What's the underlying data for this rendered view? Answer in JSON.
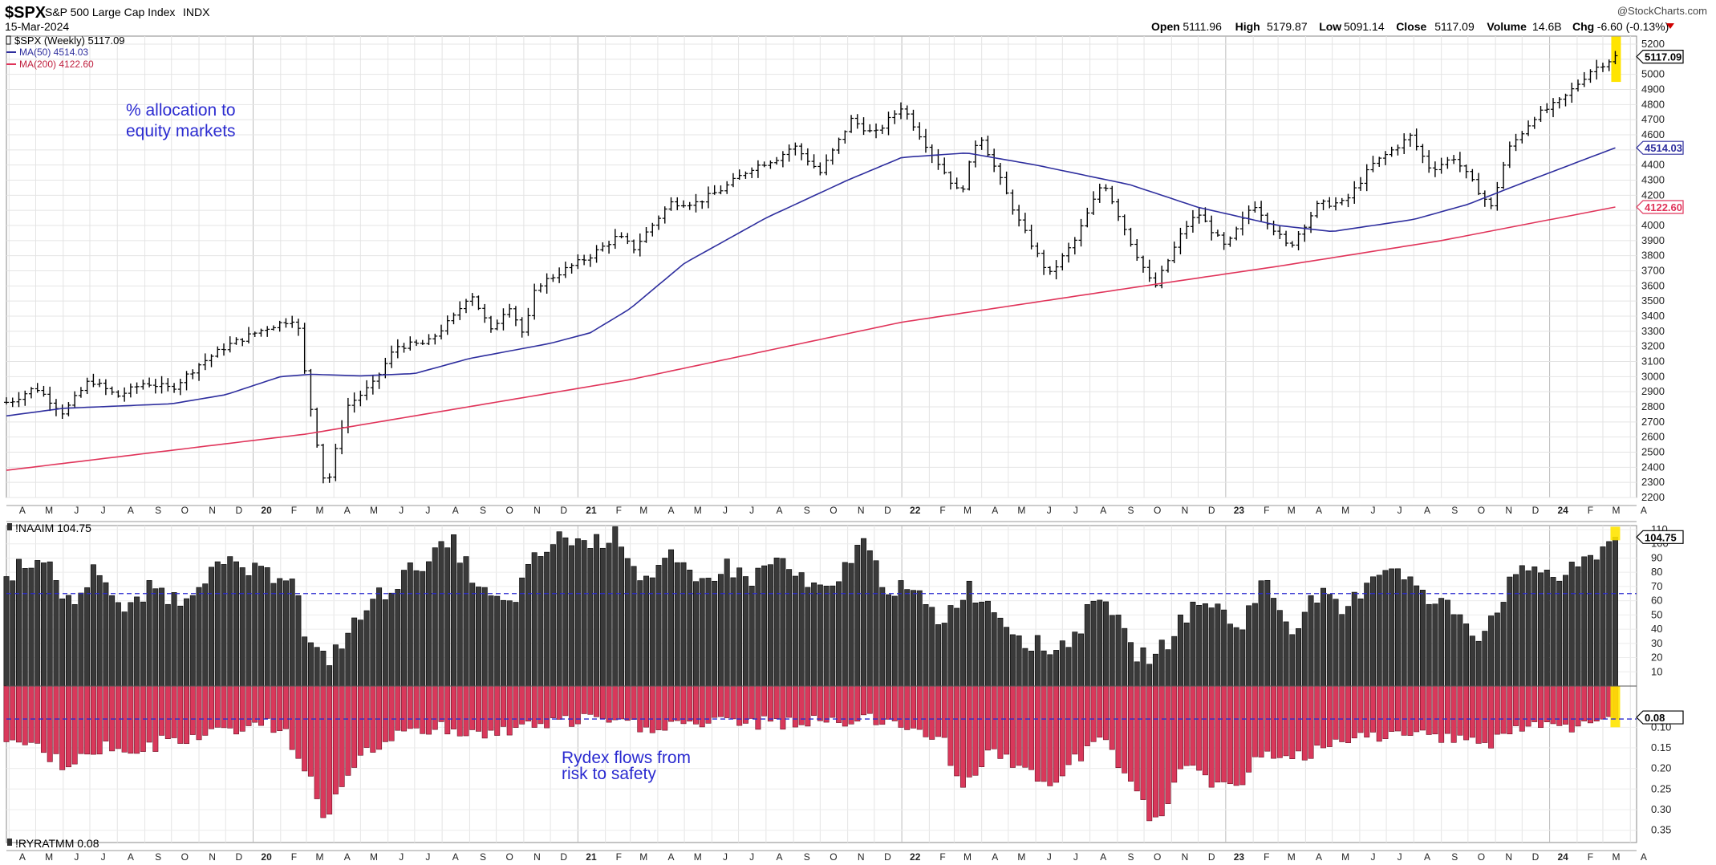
{
  "header": {
    "symbol": "$SPX",
    "name": "S&P 500 Large Cap Index",
    "exchange": "INDX",
    "date": "15-Mar-2024",
    "watermark": "@StockCharts.com",
    "ohlc": [
      {
        "label": "Open",
        "value": "5111.96"
      },
      {
        "label": "High",
        "value": "5179.87"
      },
      {
        "label": "Low",
        "value": "5091.14"
      },
      {
        "label": "Close",
        "value": "5117.09"
      },
      {
        "label": "Volume",
        "value": "14.6B"
      },
      {
        "label": "Chg",
        "value": "-6.60 (-0.13%)"
      }
    ]
  },
  "legend_price": {
    "main": "$SPX (Weekly) 5117.09",
    "ma50": "MA(50) 4514.03",
    "ma200": "MA(200) 4122.60"
  },
  "legend_naaim": "!NAAIM 104.75",
  "legend_ryrat": "!RYRATMM 0.08",
  "annotations": {
    "top": [
      "% allocation to",
      "equity markets"
    ],
    "bottom": [
      "Rydex flows from",
      "risk to safety"
    ]
  },
  "colors": {
    "price_bars": "#000000",
    "ma50": "#2e2e9e",
    "ma200": "#e0345a",
    "naaim_bars": "#3a3a3a",
    "rydex_bars": "#d9385b",
    "highlight": "#ffe400",
    "annotation": "#2b2bd0",
    "reference_lines": "#2b2bd0"
  },
  "chart_data": [
    {
      "type": "ohlc",
      "title": "$SPX (Weekly)",
      "x_range": [
        "2019-03",
        "2024-03"
      ],
      "ylim": [
        2200,
        5200
      ],
      "yticks": [
        2200,
        2300,
        2400,
        2500,
        2600,
        2700,
        2800,
        2900,
        3000,
        3100,
        3200,
        3300,
        3400,
        3500,
        3600,
        3700,
        3800,
        3900,
        4000,
        4100,
        4200,
        4300,
        4400,
        4500,
        4600,
        4700,
        4800,
        4900,
        5000,
        5100,
        5200
      ],
      "x_tick_labels": [
        "A",
        "M",
        "J",
        "J",
        "A",
        "S",
        "O",
        "N",
        "D",
        "20",
        "F",
        "M",
        "A",
        "M",
        "J",
        "J",
        "A",
        "S",
        "O",
        "N",
        "D",
        "21",
        "F",
        "M",
        "A",
        "M",
        "J",
        "J",
        "A",
        "S",
        "O",
        "N",
        "D",
        "22",
        "F",
        "M",
        "A",
        "M",
        "J",
        "J",
        "A",
        "S",
        "O",
        "N",
        "D",
        "23",
        "F",
        "M",
        "A",
        "M",
        "J",
        "J",
        "A",
        "S",
        "O",
        "N",
        "D",
        "24",
        "F",
        "M",
        "A"
      ],
      "value_labels": [
        "5117.09",
        "4514.03",
        "4122.60"
      ],
      "close_anchors": [
        [
          "2019-04-01",
          2830
        ],
        [
          "2019-05-01",
          2930
        ],
        [
          "2019-06-01",
          2760
        ],
        [
          "2019-07-01",
          2980
        ],
        [
          "2019-08-01",
          2870
        ],
        [
          "2019-09-01",
          2960
        ],
        [
          "2019-10-01",
          2920
        ],
        [
          "2019-11-01",
          3080
        ],
        [
          "2019-12-01",
          3200
        ],
        [
          "2020-01-15",
          3320
        ],
        [
          "2020-02-19",
          3390
        ],
        [
          "2020-03-01",
          2950
        ],
        [
          "2020-03-23",
          2240
        ],
        [
          "2020-04-15",
          2800
        ],
        [
          "2020-05-15",
          2950
        ],
        [
          "2020-06-10",
          3200
        ],
        [
          "2020-07-15",
          3220
        ],
        [
          "2020-08-15",
          3400
        ],
        [
          "2020-09-02",
          3560
        ],
        [
          "2020-09-25",
          3300
        ],
        [
          "2020-10-15",
          3480
        ],
        [
          "2020-11-01",
          3270
        ],
        [
          "2020-11-15",
          3600
        ],
        [
          "2020-12-15",
          3700
        ],
        [
          "2021-01-15",
          3800
        ],
        [
          "2021-02-15",
          3930
        ],
        [
          "2021-03-05",
          3850
        ],
        [
          "2021-04-15",
          4150
        ],
        [
          "2021-05-15",
          4150
        ],
        [
          "2021-06-15",
          4250
        ],
        [
          "2021-07-15",
          4380
        ],
        [
          "2021-08-15",
          4450
        ],
        [
          "2021-09-01",
          4530
        ],
        [
          "2021-10-01",
          4350
        ],
        [
          "2021-11-05",
          4700
        ],
        [
          "2021-12-01",
          4600
        ],
        [
          "2022-01-01",
          4790
        ],
        [
          "2022-02-01",
          4500
        ],
        [
          "2022-03-08",
          4200
        ],
        [
          "2022-03-29",
          4620
        ],
        [
          "2022-04-15",
          4390
        ],
        [
          "2022-05-15",
          4000
        ],
        [
          "2022-06-16",
          3670
        ],
        [
          "2022-07-15",
          3900
        ],
        [
          "2022-08-16",
          4300
        ],
        [
          "2022-09-15",
          3900
        ],
        [
          "2022-10-12",
          3580
        ],
        [
          "2022-11-15",
          3980
        ],
        [
          "2022-12-01",
          4080
        ],
        [
          "2023-01-01",
          3850
        ],
        [
          "2023-02-01",
          4150
        ],
        [
          "2023-03-13",
          3850
        ],
        [
          "2023-04-15",
          4140
        ],
        [
          "2023-05-15",
          4150
        ],
        [
          "2023-06-15",
          4400
        ],
        [
          "2023-07-28",
          4590
        ],
        [
          "2023-08-20",
          4370
        ],
        [
          "2023-09-15",
          4450
        ],
        [
          "2023-10-27",
          4120
        ],
        [
          "2023-11-15",
          4500
        ],
        [
          "2023-12-15",
          4720
        ],
        [
          "2024-01-15",
          4830
        ],
        [
          "2024-02-15",
          5020
        ],
        [
          "2024-03-15",
          5117
        ]
      ],
      "series": [
        {
          "name": "MA(50)",
          "anchors": [
            [
              "2019-03-29",
              2740
            ],
            [
              "2019-06-01",
              2790
            ],
            [
              "2019-10-01",
              2820
            ],
            [
              "2019-12-01",
              2880
            ],
            [
              "2020-02-01",
              3000
            ],
            [
              "2020-03-06",
              3015
            ],
            [
              "2020-05-01",
              3005
            ],
            [
              "2020-07-01",
              3020
            ],
            [
              "2020-09-01",
              3120
            ],
            [
              "2020-12-01",
              3220
            ],
            [
              "2021-01-15",
              3290
            ],
            [
              "2021-03-01",
              3450
            ],
            [
              "2021-05-01",
              3750
            ],
            [
              "2021-08-01",
              4050
            ],
            [
              "2021-11-01",
              4300
            ],
            [
              "2022-01-01",
              4450
            ],
            [
              "2022-03-15",
              4480
            ],
            [
              "2022-06-01",
              4400
            ],
            [
              "2022-09-15",
              4270
            ],
            [
              "2022-12-01",
              4120
            ],
            [
              "2023-03-01",
              4000
            ],
            [
              "2023-05-01",
              3960
            ],
            [
              "2023-08-01",
              4040
            ],
            [
              "2023-10-01",
              4140
            ],
            [
              "2023-12-01",
              4280
            ],
            [
              "2024-03-15",
              4514
            ]
          ]
        },
        {
          "name": "MA(200)",
          "anchors": [
            [
              "2019-03-29",
              2380
            ],
            [
              "2020-03-01",
              2620
            ],
            [
              "2021-03-01",
              2980
            ],
            [
              "2022-01-01",
              3360
            ],
            [
              "2022-10-01",
              3600
            ],
            [
              "2023-03-01",
              3730
            ],
            [
              "2023-09-01",
              3900
            ],
            [
              "2024-03-15",
              4122
            ]
          ]
        }
      ]
    },
    {
      "type": "bar",
      "title": "!NAAIM",
      "ylim": [
        0,
        110
      ],
      "yticks": [
        10,
        20,
        30,
        40,
        50,
        60,
        70,
        80,
        90,
        100,
        110
      ],
      "value_labels": [
        "104.75"
      ],
      "reference_line": 65,
      "last_value": 104.75,
      "value_anchors": [
        [
          "2019-03-29",
          75
        ],
        [
          "2019-04-20",
          90
        ],
        [
          "2019-05-20",
          80
        ],
        [
          "2019-06-10",
          55
        ],
        [
          "2019-07-10",
          85
        ],
        [
          "2019-08-10",
          50
        ],
        [
          "2019-09-10",
          70
        ],
        [
          "2019-10-10",
          60
        ],
        [
          "2019-11-10",
          80
        ],
        [
          "2019-12-10",
          85
        ],
        [
          "2020-01-10",
          78
        ],
        [
          "2020-02-15",
          80
        ],
        [
          "2020-03-01",
          30
        ],
        [
          "2020-03-23",
          17
        ],
        [
          "2020-04-15",
          35
        ],
        [
          "2020-05-15",
          60
        ],
        [
          "2020-06-15",
          75
        ],
        [
          "2020-07-15",
          90
        ],
        [
          "2020-08-15",
          100
        ],
        [
          "2020-09-15",
          65
        ],
        [
          "2020-10-15",
          55
        ],
        [
          "2020-11-15",
          90
        ],
        [
          "2020-12-15",
          105
        ],
        [
          "2021-01-15",
          100
        ],
        [
          "2021-02-15",
          108
        ],
        [
          "2021-03-15",
          75
        ],
        [
          "2021-04-15",
          90
        ],
        [
          "2021-05-15",
          70
        ],
        [
          "2021-06-15",
          85
        ],
        [
          "2021-07-15",
          75
        ],
        [
          "2021-08-15",
          90
        ],
        [
          "2021-09-15",
          70
        ],
        [
          "2021-10-15",
          65
        ],
        [
          "2021-11-15",
          105
        ],
        [
          "2021-12-15",
          70
        ],
        [
          "2022-01-15",
          65
        ],
        [
          "2022-02-15",
          45
        ],
        [
          "2022-03-15",
          70
        ],
        [
          "2022-04-15",
          55
        ],
        [
          "2022-05-15",
          35
        ],
        [
          "2022-06-15",
          25
        ],
        [
          "2022-07-15",
          35
        ],
        [
          "2022-08-15",
          70
        ],
        [
          "2022-09-15",
          25
        ],
        [
          "2022-10-15",
          20
        ],
        [
          "2022-11-15",
          50
        ],
        [
          "2022-12-15",
          60
        ],
        [
          "2023-01-15",
          40
        ],
        [
          "2023-02-15",
          75
        ],
        [
          "2023-03-15",
          40
        ],
        [
          "2023-04-15",
          65
        ],
        [
          "2023-05-15",
          50
        ],
        [
          "2023-06-15",
          80
        ],
        [
          "2023-07-15",
          85
        ],
        [
          "2023-08-15",
          60
        ],
        [
          "2023-09-15",
          55
        ],
        [
          "2023-10-15",
          35
        ],
        [
          "2023-11-15",
          70
        ],
        [
          "2023-12-15",
          85
        ],
        [
          "2024-01-15",
          75
        ],
        [
          "2024-02-15",
          90
        ],
        [
          "2024-03-15",
          104.75
        ]
      ]
    },
    {
      "type": "bar",
      "title": "!RYRATMM",
      "ylim": [
        0,
        0.38
      ],
      "yticks": [
        0.1,
        0.15,
        0.2,
        0.25,
        0.3,
        0.35
      ],
      "value_labels": [
        "0.08"
      ],
      "reference_line": 0.08,
      "last_value": 0.08,
      "value_anchors": [
        [
          "2019-03-29",
          0.12
        ],
        [
          "2019-05-01",
          0.15
        ],
        [
          "2019-06-01",
          0.19
        ],
        [
          "2019-08-01",
          0.14
        ],
        [
          "2019-09-01",
          0.16
        ],
        [
          "2019-10-01",
          0.12
        ],
        [
          "2019-11-01",
          0.13
        ],
        [
          "2019-12-01",
          0.11
        ],
        [
          "2020-01-01",
          0.09
        ],
        [
          "2020-02-01",
          0.1
        ],
        [
          "2020-03-01",
          0.2
        ],
        [
          "2020-03-23",
          0.32
        ],
        [
          "2020-04-15",
          0.22
        ],
        [
          "2020-05-15",
          0.15
        ],
        [
          "2020-06-15",
          0.12
        ],
        [
          "2020-08-01",
          0.1
        ],
        [
          "2020-09-15",
          0.12
        ],
        [
          "2020-10-15",
          0.11
        ],
        [
          "2020-11-15",
          0.09
        ],
        [
          "2020-12-15",
          0.09
        ],
        [
          "2021-01-15",
          0.08
        ],
        [
          "2021-03-15",
          0.1
        ],
        [
          "2021-05-15",
          0.09
        ],
        [
          "2021-07-15",
          0.09
        ],
        [
          "2021-09-15",
          0.09
        ],
        [
          "2021-11-15",
          0.08
        ],
        [
          "2022-01-15",
          0.1
        ],
        [
          "2022-02-15",
          0.12
        ],
        [
          "2022-03-08",
          0.25
        ],
        [
          "2022-04-15",
          0.15
        ],
        [
          "2022-05-15",
          0.2
        ],
        [
          "2022-06-15",
          0.25
        ],
        [
          "2022-07-15",
          0.18
        ],
        [
          "2022-08-15",
          0.13
        ],
        [
          "2022-09-15",
          0.22
        ],
        [
          "2022-10-12",
          0.34
        ],
        [
          "2022-11-15",
          0.2
        ],
        [
          "2022-12-15",
          0.23
        ],
        [
          "2023-01-15",
          0.25
        ],
        [
          "2023-02-15",
          0.15
        ],
        [
          "2023-03-15",
          0.18
        ],
        [
          "2023-04-15",
          0.16
        ],
        [
          "2023-05-15",
          0.14
        ],
        [
          "2023-06-15",
          0.12
        ],
        [
          "2023-08-01",
          0.12
        ],
        [
          "2023-09-15",
          0.12
        ],
        [
          "2023-10-27",
          0.14
        ],
        [
          "2023-11-15",
          0.11
        ],
        [
          "2023-12-15",
          0.1
        ],
        [
          "2024-01-15",
          0.1
        ],
        [
          "2024-02-15",
          0.09
        ],
        [
          "2024-03-15",
          0.08
        ]
      ]
    }
  ]
}
